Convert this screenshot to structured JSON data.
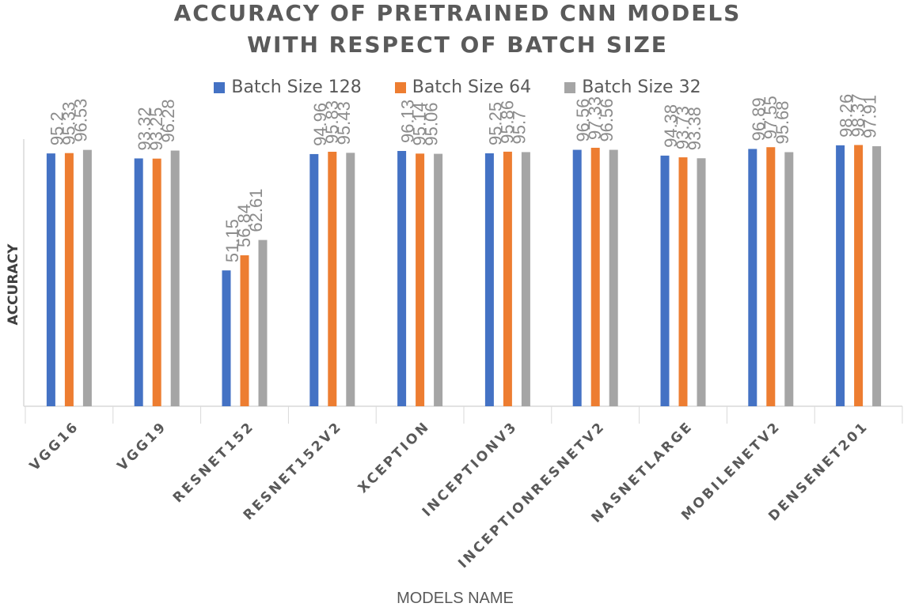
{
  "chart_data": {
    "type": "bar",
    "title_lines": [
      "ACCURACY OF PRETRAINED CNN MODELS",
      "WITH RESPECT OF BATCH SIZE"
    ],
    "xlabel": "MODELS NAME",
    "ylabel": "ACCURACY",
    "ylim": [
      0,
      100
    ],
    "grid": false,
    "legend_position": "top-center",
    "categories": [
      "VGG16",
      "VGG19",
      "RESNET152",
      "RESNET152V2",
      "XCEPTION",
      "INCEPTIONV3",
      "INCEPTIONRESNETV2",
      "NASNETLARGE",
      "MOBILENETV2",
      "DENSENET201"
    ],
    "series": [
      {
        "name": "Batch Size 128",
        "color": "#4472C4",
        "values": [
          95.2,
          93.32,
          51.15,
          94.96,
          96.13,
          95.25,
          96.56,
          94.38,
          96.89,
          98.26
        ],
        "labels": [
          "95.2",
          "93.32",
          "51.15",
          "94.96",
          "96.13",
          "95.25",
          "96.56",
          "94.38",
          "96.89",
          "98.26"
        ]
      },
      {
        "name": "Batch Size 64",
        "color": "#ED7D31",
        "values": [
          95.33,
          93.25,
          56.84,
          95.83,
          95.14,
          95.86,
          97.33,
          93.73,
          97.55,
          98.37
        ],
        "labels": [
          "95.33",
          "93.25",
          "56.84",
          "95.83",
          "95.14",
          "95.86",
          "97.33",
          "93.73",
          "97.55",
          "98.37"
        ]
      },
      {
        "name": "Batch Size 32",
        "color": "#A5A5A5",
        "values": [
          96.53,
          96.28,
          62.61,
          95.43,
          95.06,
          95.7,
          96.56,
          93.38,
          95.68,
          97.91
        ],
        "labels": [
          "96.53",
          "96.28",
          "62.61",
          "95.43",
          "95.06",
          "95.7",
          "96.56",
          "93.38",
          "95.68",
          "97.91"
        ]
      }
    ]
  }
}
